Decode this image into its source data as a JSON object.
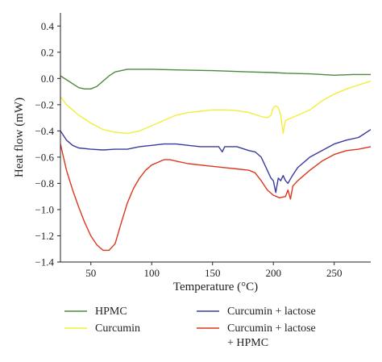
{
  "chart_data": {
    "type": "line",
    "xlabel": "Temperature (°C)",
    "ylabel": "Heat flow (mW)",
    "xlim": [
      25,
      280
    ],
    "ylim": [
      -1.4,
      0.5
    ],
    "xticks": [
      50,
      100,
      150,
      200,
      250
    ],
    "xtick_labels": [
      "50",
      "100",
      "150",
      "200",
      "250"
    ],
    "yticks": [
      -1.4,
      -1.2,
      -1.0,
      -0.8,
      -0.6,
      -0.4,
      -0.2,
      0.0,
      0.2,
      0.4
    ],
    "ytick_labels": [
      "−1.4",
      "−1.2",
      "−1.0",
      "−0.8",
      "−0.6",
      "−0.4",
      "−0.2",
      "0.0",
      "0.2",
      "0.4"
    ],
    "grid": false,
    "legend_position": "bottom",
    "series": [
      {
        "name": "HPMC",
        "color": "#4a8a3a",
        "points": [
          [
            25,
            0.02
          ],
          [
            30,
            -0.01
          ],
          [
            35,
            -0.04
          ],
          [
            40,
            -0.07
          ],
          [
            45,
            -0.08
          ],
          [
            50,
            -0.08
          ],
          [
            55,
            -0.06
          ],
          [
            60,
            -0.02
          ],
          [
            65,
            0.02
          ],
          [
            70,
            0.05
          ],
          [
            75,
            0.06
          ],
          [
            80,
            0.07
          ],
          [
            90,
            0.07
          ],
          [
            100,
            0.07
          ],
          [
            120,
            0.065
          ],
          [
            150,
            0.06
          ],
          [
            180,
            0.05
          ],
          [
            200,
            0.045
          ],
          [
            210,
            0.04
          ],
          [
            230,
            0.035
          ],
          [
            250,
            0.025
          ],
          [
            265,
            0.03
          ],
          [
            280,
            0.03
          ]
        ]
      },
      {
        "name": "Curcumin",
        "color": "#f2ee3a",
        "points": [
          [
            25,
            -0.14
          ],
          [
            30,
            -0.2
          ],
          [
            40,
            -0.28
          ],
          [
            50,
            -0.34
          ],
          [
            60,
            -0.39
          ],
          [
            70,
            -0.41
          ],
          [
            80,
            -0.42
          ],
          [
            90,
            -0.4
          ],
          [
            100,
            -0.36
          ],
          [
            110,
            -0.32
          ],
          [
            120,
            -0.28
          ],
          [
            130,
            -0.26
          ],
          [
            140,
            -0.25
          ],
          [
            150,
            -0.24
          ],
          [
            160,
            -0.24
          ],
          [
            170,
            -0.245
          ],
          [
            180,
            -0.26
          ],
          [
            190,
            -0.29
          ],
          [
            195,
            -0.3
          ],
          [
            198,
            -0.28
          ],
          [
            200,
            -0.22
          ],
          [
            202,
            -0.21
          ],
          [
            204,
            -0.22
          ],
          [
            206,
            -0.28
          ],
          [
            207,
            -0.35
          ],
          [
            208,
            -0.42
          ],
          [
            209,
            -0.36
          ],
          [
            210,
            -0.32
          ],
          [
            215,
            -0.3
          ],
          [
            220,
            -0.28
          ],
          [
            230,
            -0.24
          ],
          [
            240,
            -0.17
          ],
          [
            250,
            -0.12
          ],
          [
            260,
            -0.08
          ],
          [
            270,
            -0.05
          ],
          [
            280,
            -0.02
          ]
        ]
      },
      {
        "name": "Curcumin + lactose",
        "color": "#3a3a9e",
        "points": [
          [
            25,
            -0.4
          ],
          [
            30,
            -0.47
          ],
          [
            35,
            -0.51
          ],
          [
            40,
            -0.53
          ],
          [
            50,
            -0.54
          ],
          [
            60,
            -0.545
          ],
          [
            70,
            -0.54
          ],
          [
            80,
            -0.54
          ],
          [
            90,
            -0.52
          ],
          [
            100,
            -0.51
          ],
          [
            110,
            -0.5
          ],
          [
            120,
            -0.5
          ],
          [
            130,
            -0.51
          ],
          [
            140,
            -0.52
          ],
          [
            150,
            -0.52
          ],
          [
            155,
            -0.52
          ],
          [
            158,
            -0.56
          ],
          [
            160,
            -0.52
          ],
          [
            170,
            -0.52
          ],
          [
            180,
            -0.55
          ],
          [
            185,
            -0.56
          ],
          [
            190,
            -0.6
          ],
          [
            195,
            -0.7
          ],
          [
            198,
            -0.76
          ],
          [
            200,
            -0.78
          ],
          [
            202,
            -0.87
          ],
          [
            204,
            -0.76
          ],
          [
            206,
            -0.78
          ],
          [
            208,
            -0.74
          ],
          [
            210,
            -0.78
          ],
          [
            212,
            -0.8
          ],
          [
            215,
            -0.75
          ],
          [
            220,
            -0.68
          ],
          [
            230,
            -0.6
          ],
          [
            240,
            -0.55
          ],
          [
            250,
            -0.5
          ],
          [
            260,
            -0.47
          ],
          [
            270,
            -0.45
          ],
          [
            275,
            -0.42
          ],
          [
            280,
            -0.39
          ]
        ]
      },
      {
        "name": "Curcumin + lactose + HPMC",
        "color": "#d9381e",
        "points": [
          [
            25,
            -0.5
          ],
          [
            30,
            -0.7
          ],
          [
            35,
            -0.85
          ],
          [
            40,
            -0.98
          ],
          [
            45,
            -1.1
          ],
          [
            50,
            -1.2
          ],
          [
            55,
            -1.27
          ],
          [
            60,
            -1.31
          ],
          [
            65,
            -1.31
          ],
          [
            70,
            -1.26
          ],
          [
            75,
            -1.1
          ],
          [
            80,
            -0.95
          ],
          [
            85,
            -0.84
          ],
          [
            90,
            -0.76
          ],
          [
            95,
            -0.7
          ],
          [
            100,
            -0.66
          ],
          [
            105,
            -0.64
          ],
          [
            110,
            -0.62
          ],
          [
            115,
            -0.62
          ],
          [
            120,
            -0.63
          ],
          [
            130,
            -0.65
          ],
          [
            140,
            -0.66
          ],
          [
            150,
            -0.67
          ],
          [
            160,
            -0.68
          ],
          [
            170,
            -0.69
          ],
          [
            180,
            -0.7
          ],
          [
            185,
            -0.72
          ],
          [
            190,
            -0.78
          ],
          [
            195,
            -0.85
          ],
          [
            200,
            -0.89
          ],
          [
            205,
            -0.91
          ],
          [
            210,
            -0.9
          ],
          [
            212,
            -0.85
          ],
          [
            214,
            -0.92
          ],
          [
            216,
            -0.82
          ],
          [
            220,
            -0.78
          ],
          [
            230,
            -0.7
          ],
          [
            240,
            -0.63
          ],
          [
            250,
            -0.58
          ],
          [
            260,
            -0.55
          ],
          [
            270,
            -0.54
          ],
          [
            280,
            -0.52
          ]
        ]
      }
    ]
  }
}
